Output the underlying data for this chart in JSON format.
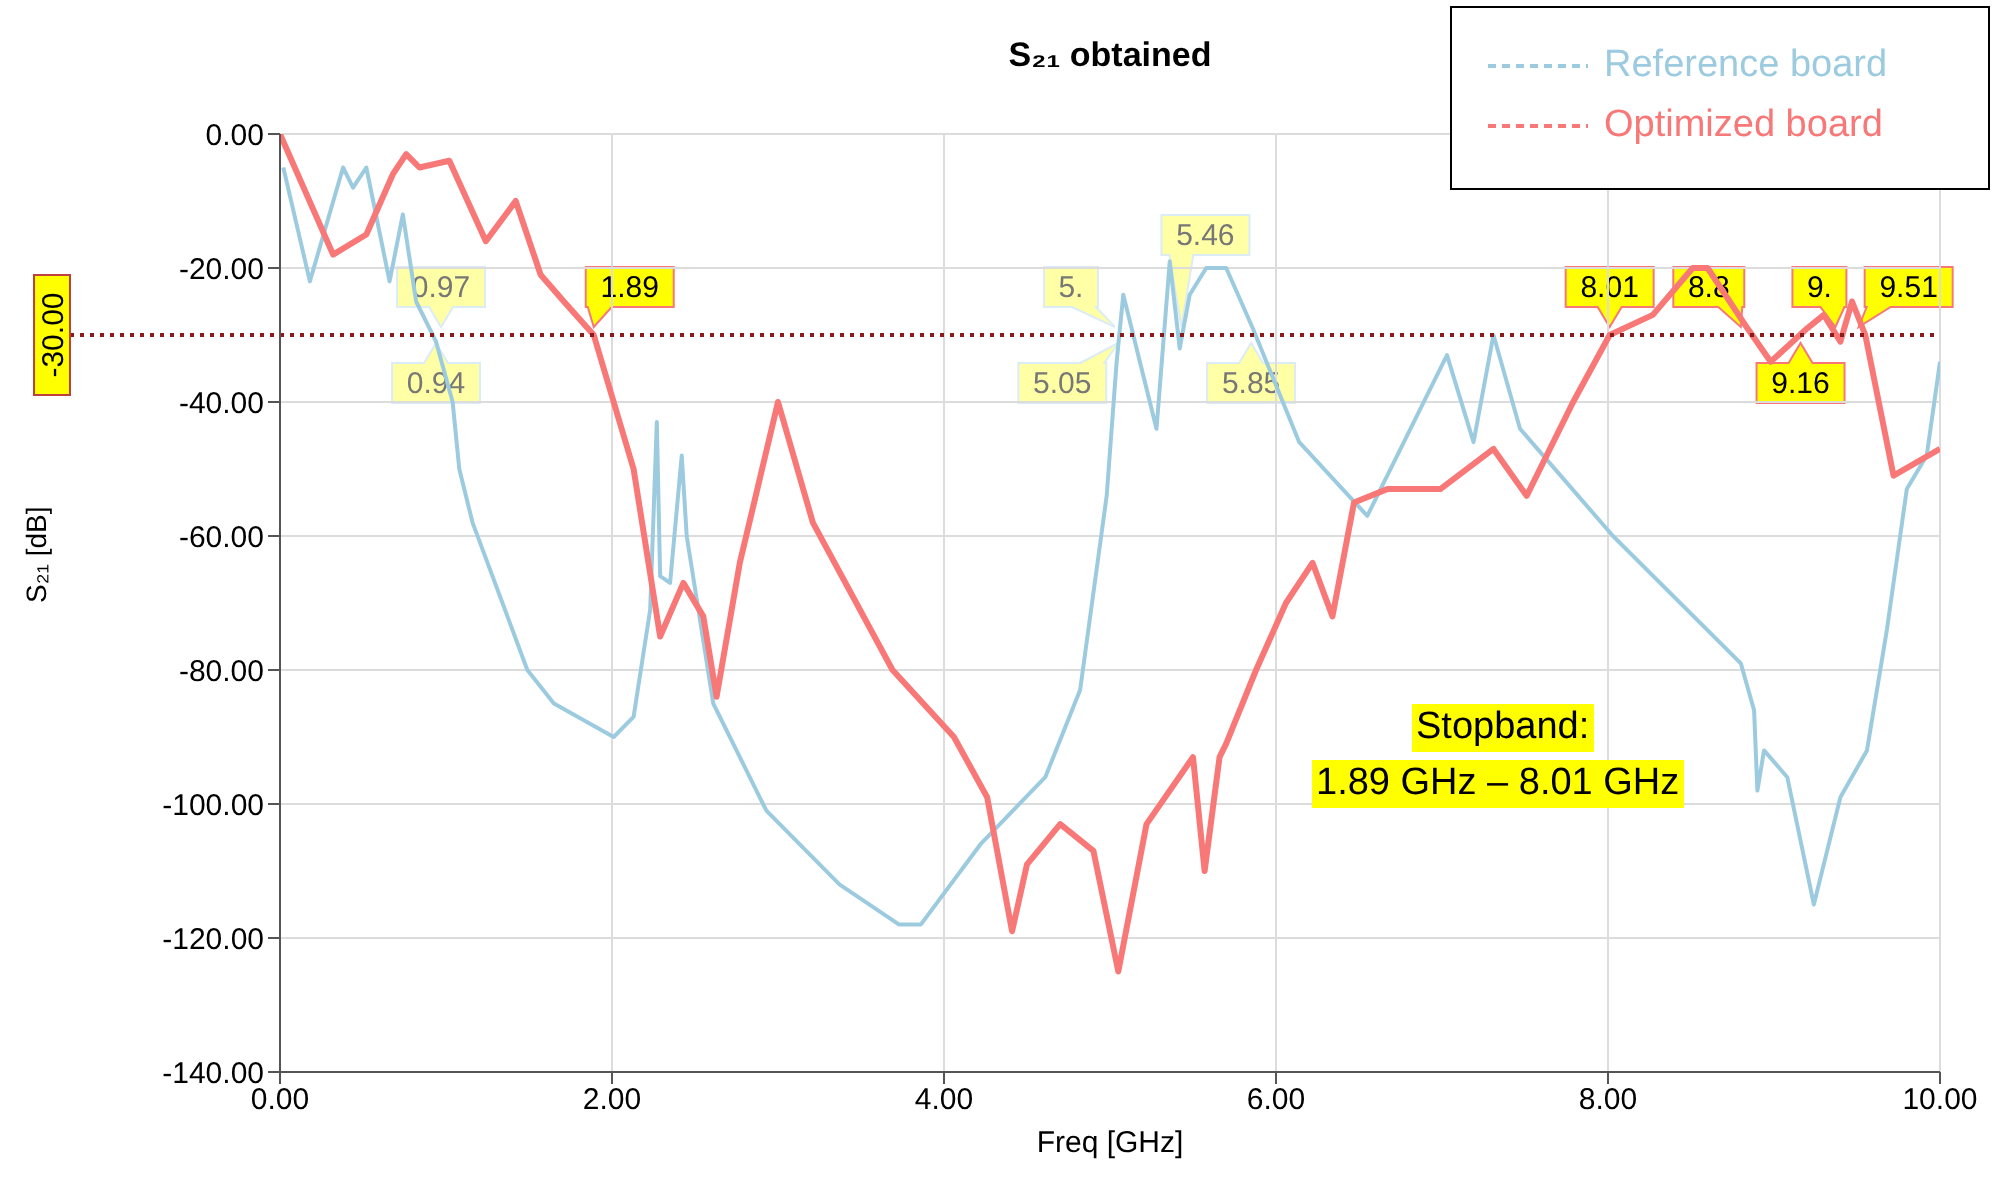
{
  "chart_data": {
    "type": "line",
    "title": "S₂₁ obtained",
    "xlabel": "Freq [GHz]",
    "ylabel": "S₂₁ [dB]",
    "xlim": [
      0,
      10
    ],
    "xticks": [
      {
        "value": 0,
        "label": "0.00"
      },
      {
        "value": 2,
        "label": "2.00"
      },
      {
        "value": 4,
        "label": "4.00"
      },
      {
        "value": 6,
        "label": "6.00"
      },
      {
        "value": 8,
        "label": "8.00"
      },
      {
        "value": 10,
        "label": "10.00"
      }
    ],
    "ylim": [
      -140,
      0
    ],
    "yticks": [
      {
        "value": -140,
        "label": "-140.00"
      },
      {
        "value": -120,
        "label": "-120.00"
      },
      {
        "value": -100,
        "label": "-100.00"
      },
      {
        "value": -80,
        "label": "-80.00"
      },
      {
        "value": -60,
        "label": "-60.00"
      },
      {
        "value": -40,
        "label": "-40.00"
      },
      {
        "value": -20,
        "label": "-20.00"
      },
      {
        "value": 0,
        "label": "0.00"
      }
    ],
    "grid": true,
    "legend": "top right",
    "line_style": "solid",
    "marker": "none",
    "series": [
      {
        "name": "Reference board",
        "color": "#9ccbe0",
        "x": [
          0.02,
          0.18,
          0.38,
          0.44,
          0.52,
          0.66,
          0.74,
          0.82,
          0.94,
          1.04,
          1.08,
          1.16,
          1.49,
          1.65,
          2.01,
          2.13,
          2.23,
          2.27,
          2.29,
          2.35,
          2.42,
          2.45,
          2.61,
          2.93,
          3.37,
          3.73,
          3.86,
          4.22,
          4.61,
          4.82,
          4.98,
          5.04,
          5.08,
          5.28,
          5.36,
          5.42,
          5.48,
          5.58,
          5.7,
          5.86,
          6.14,
          6.55,
          7.03,
          7.19,
          7.31,
          7.47,
          8.03,
          8.8,
          8.88,
          8.9,
          8.94,
          9.08,
          9.24,
          9.4,
          9.56,
          9.68,
          9.8,
          9.92,
          10
        ],
        "values": [
          -5,
          -22,
          -5,
          -8,
          -5,
          -22,
          -12,
          -25,
          -31,
          -40,
          -50,
          -58,
          -80,
          -85,
          -90,
          -87,
          -71,
          -43,
          -66,
          -67,
          -48,
          -60,
          -85,
          -101,
          -112,
          -118,
          -118,
          -106,
          -96,
          -83,
          -54,
          -34,
          -24,
          -44,
          -19,
          -32,
          -24,
          -20,
          -20,
          -29,
          -46,
          -57,
          -33,
          -46,
          -30,
          -44,
          -60,
          -79,
          -86,
          -98,
          -92,
          -96,
          -115,
          -99,
          -92,
          -74,
          -53,
          -48,
          -34
        ]
      },
      {
        "name": "Optimized board",
        "color": "#f87878",
        "x": [
          0,
          0.32,
          0.52,
          0.68,
          0.76,
          0.84,
          1.02,
          1.24,
          1.42,
          1.57,
          1.71,
          1.89,
          2.13,
          2.29,
          2.43,
          2.55,
          2.63,
          2.77,
          3.0,
          3.21,
          3.69,
          4.06,
          4.26,
          4.41,
          4.5,
          4.7,
          4.9,
          5.05,
          5.22,
          5.5,
          5.57,
          5.66,
          5.7,
          5.88,
          6.06,
          6.22,
          6.34,
          6.47,
          6.67,
          6.99,
          7.31,
          7.51,
          7.79,
          8.01,
          8.27,
          8.51,
          8.6,
          8.84,
          8.98,
          9.2,
          9.3,
          9.4,
          9.47,
          9.55,
          9.72,
          10
        ],
        "values": [
          0,
          -18,
          -15,
          -6,
          -3,
          -5,
          -4,
          -16,
          -10,
          -21,
          -25,
          -30,
          -50,
          -75,
          -67,
          -72,
          -84,
          -64,
          -40,
          -58,
          -80,
          -90,
          -99,
          -119,
          -109,
          -103,
          -107,
          -125,
          -103,
          -93,
          -110,
          -93,
          -91,
          -80,
          -70,
          -64,
          -72,
          -55,
          -53,
          -53,
          -47,
          -54,
          -40,
          -30,
          -27,
          -20,
          -20,
          -29,
          -34,
          -29,
          -27,
          -31,
          -25,
          -30,
          -51,
          -47
        ]
      }
    ],
    "ref_lines": [
      {
        "axis": "y",
        "value": -30,
        "label": "-30.00",
        "color": "#8b1a1a",
        "line_style": "dotted"
      }
    ],
    "annotations": [
      {
        "text": "0.97",
        "x": 0.97,
        "y": -30
      },
      {
        "text": "0.94",
        "x": 0.94,
        "y": -30
      },
      {
        "text": "5.",
        "x": 5.03,
        "y": -30
      },
      {
        "text": "5.05",
        "x": 5.05,
        "y": -30
      },
      {
        "text": "5.46",
        "x": 5.43,
        "y": -30
      },
      {
        "text": "5.85",
        "x": 5.85,
        "y": -30
      },
      {
        "text": "1.89",
        "x": 1.89,
        "y": -30
      },
      {
        "text": "9.16",
        "x": 9.16,
        "y": -30
      },
      {
        "text": "8.01",
        "x": 8.01,
        "y": -30
      },
      {
        "text": "8.8",
        "x": 8.8,
        "y": -30
      },
      {
        "text": "9.",
        "x": 9.37,
        "y": -30
      },
      {
        "text": "9.51",
        "x": 9.51,
        "y": -30
      },
      "Stopband:",
      "1.89 GHz – 8.01 GHz"
    ]
  }
}
